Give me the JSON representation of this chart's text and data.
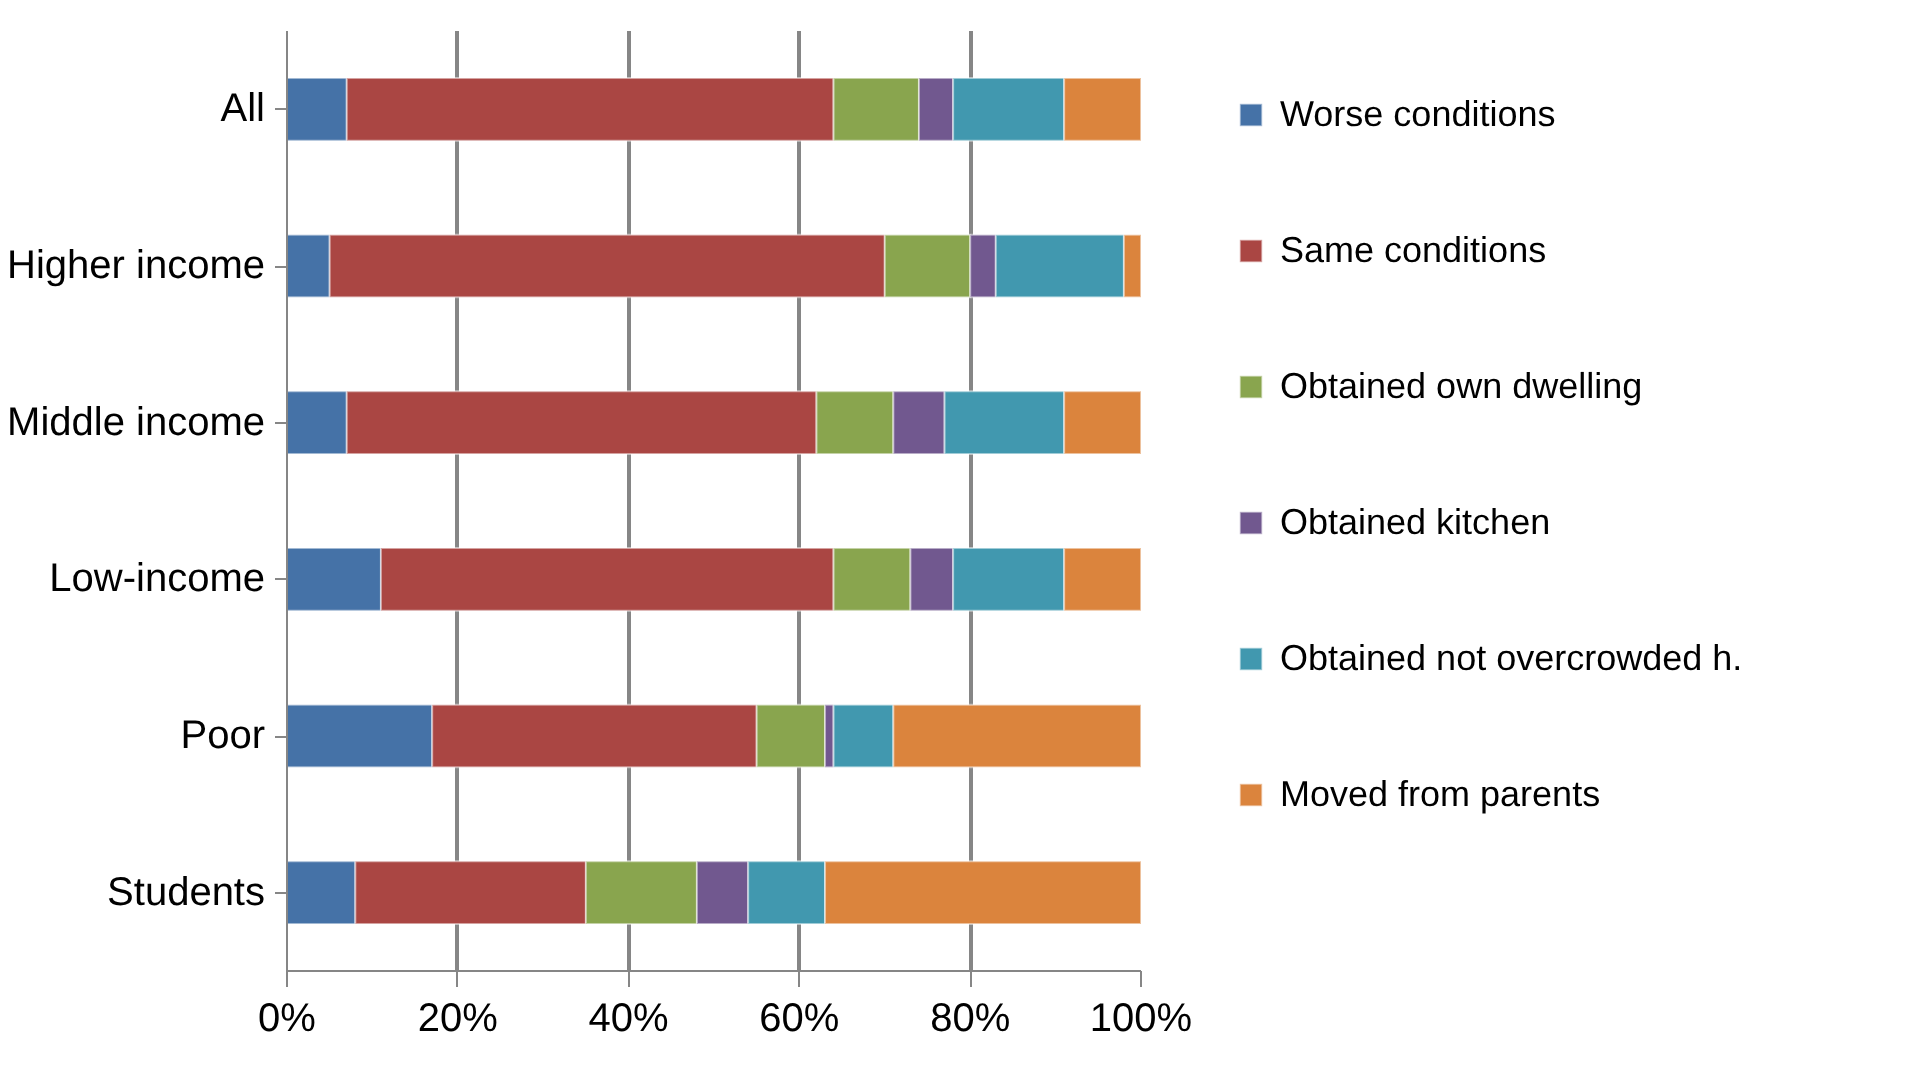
{
  "chart_data": {
    "type": "bar",
    "orientation": "horizontal",
    "stacked": true,
    "categories": [
      "All",
      "Higher income",
      "Middle income",
      "Low-income",
      "Poor",
      "Students"
    ],
    "series": [
      {
        "name": "Worse conditions",
        "color": "#4572a7",
        "values": [
          7,
          5,
          7,
          11,
          17,
          8
        ]
      },
      {
        "name": "Same conditions",
        "color": "#aa4643",
        "values": [
          57,
          65,
          55,
          53,
          38,
          27
        ]
      },
      {
        "name": "Obtained own dwelling",
        "color": "#89a54e",
        "values": [
          10,
          10,
          9,
          9,
          8,
          13
        ]
      },
      {
        "name": "Obtained kitchen",
        "color": "#71588f",
        "values": [
          4,
          3,
          6,
          5,
          1,
          6
        ]
      },
      {
        "name": "Obtained not overcrowded h.",
        "color": "#4198af",
        "values": [
          13,
          15,
          14,
          13,
          7,
          9
        ]
      },
      {
        "name": "Moved from parents",
        "color": "#db843d",
        "values": [
          9,
          2,
          9,
          9,
          29,
          37
        ]
      }
    ],
    "xlim": [
      0,
      100
    ],
    "xticks": [
      {
        "value": 0,
        "label": "0%"
      },
      {
        "value": 20,
        "label": "20%"
      },
      {
        "value": 40,
        "label": "40%"
      },
      {
        "value": 60,
        "label": "60%"
      },
      {
        "value": 80,
        "label": "80%"
      },
      {
        "value": 100,
        "label": "100%"
      }
    ],
    "grid": "x",
    "legend": "right"
  }
}
